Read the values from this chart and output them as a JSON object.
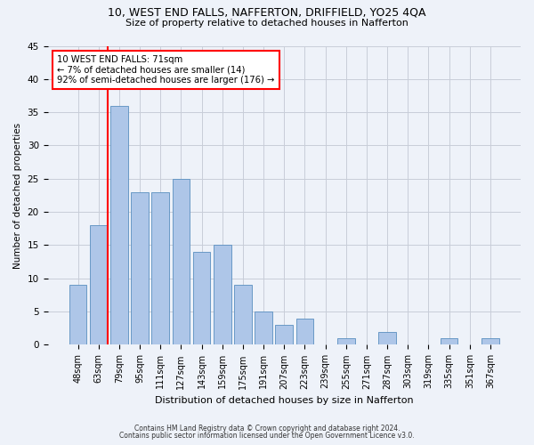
{
  "title1": "10, WEST END FALLS, NAFFERTON, DRIFFIELD, YO25 4QA",
  "title2": "Size of property relative to detached houses in Nafferton",
  "xlabel": "Distribution of detached houses by size in Nafferton",
  "ylabel": "Number of detached properties",
  "footnote1": "Contains HM Land Registry data © Crown copyright and database right 2024.",
  "footnote2": "Contains public sector information licensed under the Open Government Licence v3.0.",
  "bar_labels": [
    "48sqm",
    "63sqm",
    "79sqm",
    "95sqm",
    "111sqm",
    "127sqm",
    "143sqm",
    "159sqm",
    "175sqm",
    "191sqm",
    "207sqm",
    "223sqm",
    "239sqm",
    "255sqm",
    "271sqm",
    "287sqm",
    "303sqm",
    "319sqm",
    "335sqm",
    "351sqm",
    "367sqm"
  ],
  "bar_values": [
    9,
    18,
    36,
    23,
    23,
    25,
    14,
    15,
    9,
    5,
    3,
    4,
    0,
    1,
    0,
    2,
    0,
    0,
    1,
    0,
    1
  ],
  "bar_color": "#aec6e8",
  "bar_edge_color": "#5a8fc0",
  "vline_color": "red",
  "annotation_text": "10 WEST END FALLS: 71sqm\n← 7% of detached houses are smaller (14)\n92% of semi-detached houses are larger (176) →",
  "annotation_box_color": "white",
  "annotation_box_edge_color": "red",
  "ylim": [
    0,
    45
  ],
  "yticks": [
    0,
    5,
    10,
    15,
    20,
    25,
    30,
    35,
    40,
    45
  ],
  "bg_color": "#eef2f9",
  "plot_bg_color": "#eef2f9",
  "grid_color": "#c8cdd8"
}
